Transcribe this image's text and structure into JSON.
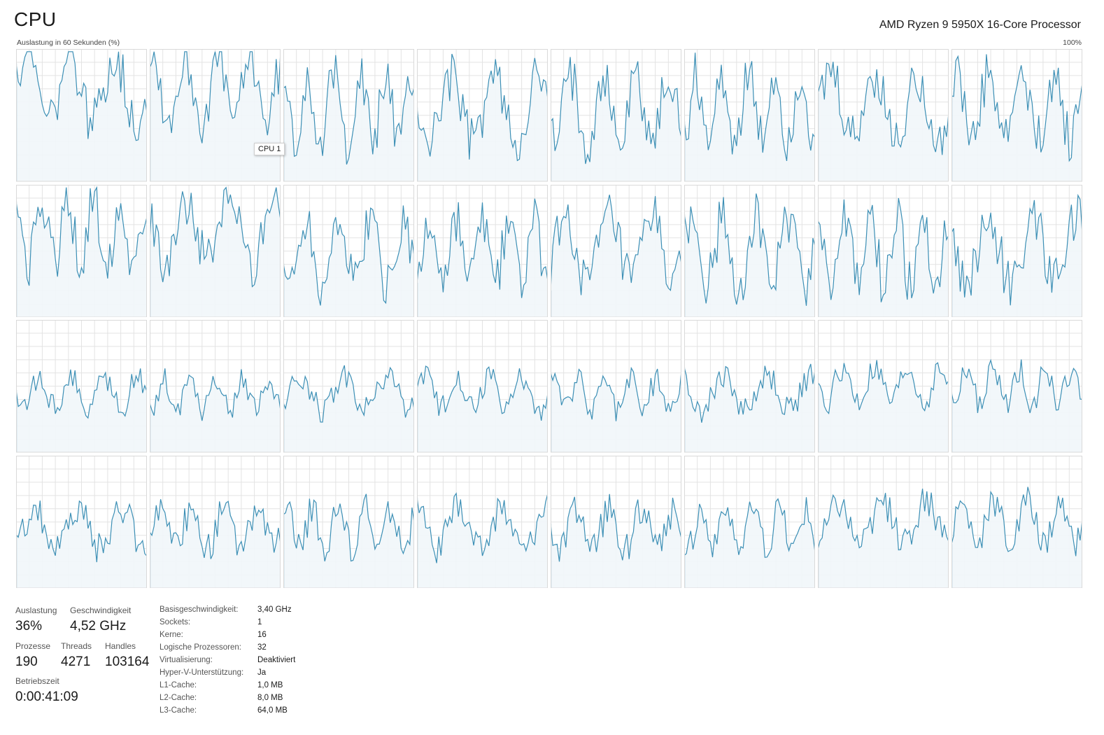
{
  "header": {
    "title": "CPU",
    "cpu_name": "AMD Ryzen 9 5950X 16-Core Processor"
  },
  "graph": {
    "caption": "Auslastung in 60 Sekunden (%)",
    "max_label": "100%",
    "tooltip": "CPU 1",
    "line_color": "#3c8fb5",
    "fill_color": "#f1f6fa",
    "grid_color": "#e3e3e3",
    "logical_processor_count": 32,
    "columns": 8,
    "rows": 4
  },
  "stats": {
    "utilization_label": "Auslastung",
    "utilization_value": "36%",
    "speed_label": "Geschwindigkeit",
    "speed_value": "4,52 GHz",
    "processes_label": "Prozesse",
    "processes_value": "190",
    "threads_label": "Threads",
    "threads_value": "4271",
    "handles_label": "Handles",
    "handles_value": "103164",
    "uptime_label": "Betriebszeit",
    "uptime_value": "0:00:41:09"
  },
  "details": [
    {
      "label": "Basisgeschwindigkeit:",
      "value": "3,40 GHz"
    },
    {
      "label": "Sockets:",
      "value": "1"
    },
    {
      "label": "Kerne:",
      "value": "16"
    },
    {
      "label": "Logische Prozessoren:",
      "value": "32"
    },
    {
      "label": "Virtualisierung:",
      "value": "Deaktiviert"
    },
    {
      "label": "Hyper-V-Unterstützung:",
      "value": "Ja"
    },
    {
      "label": "L1-Cache:",
      "value": "1,0 MB"
    },
    {
      "label": "L2-Cache:",
      "value": "8,0 MB"
    },
    {
      "label": "L3-Cache:",
      "value": "64,0 MB"
    }
  ]
}
